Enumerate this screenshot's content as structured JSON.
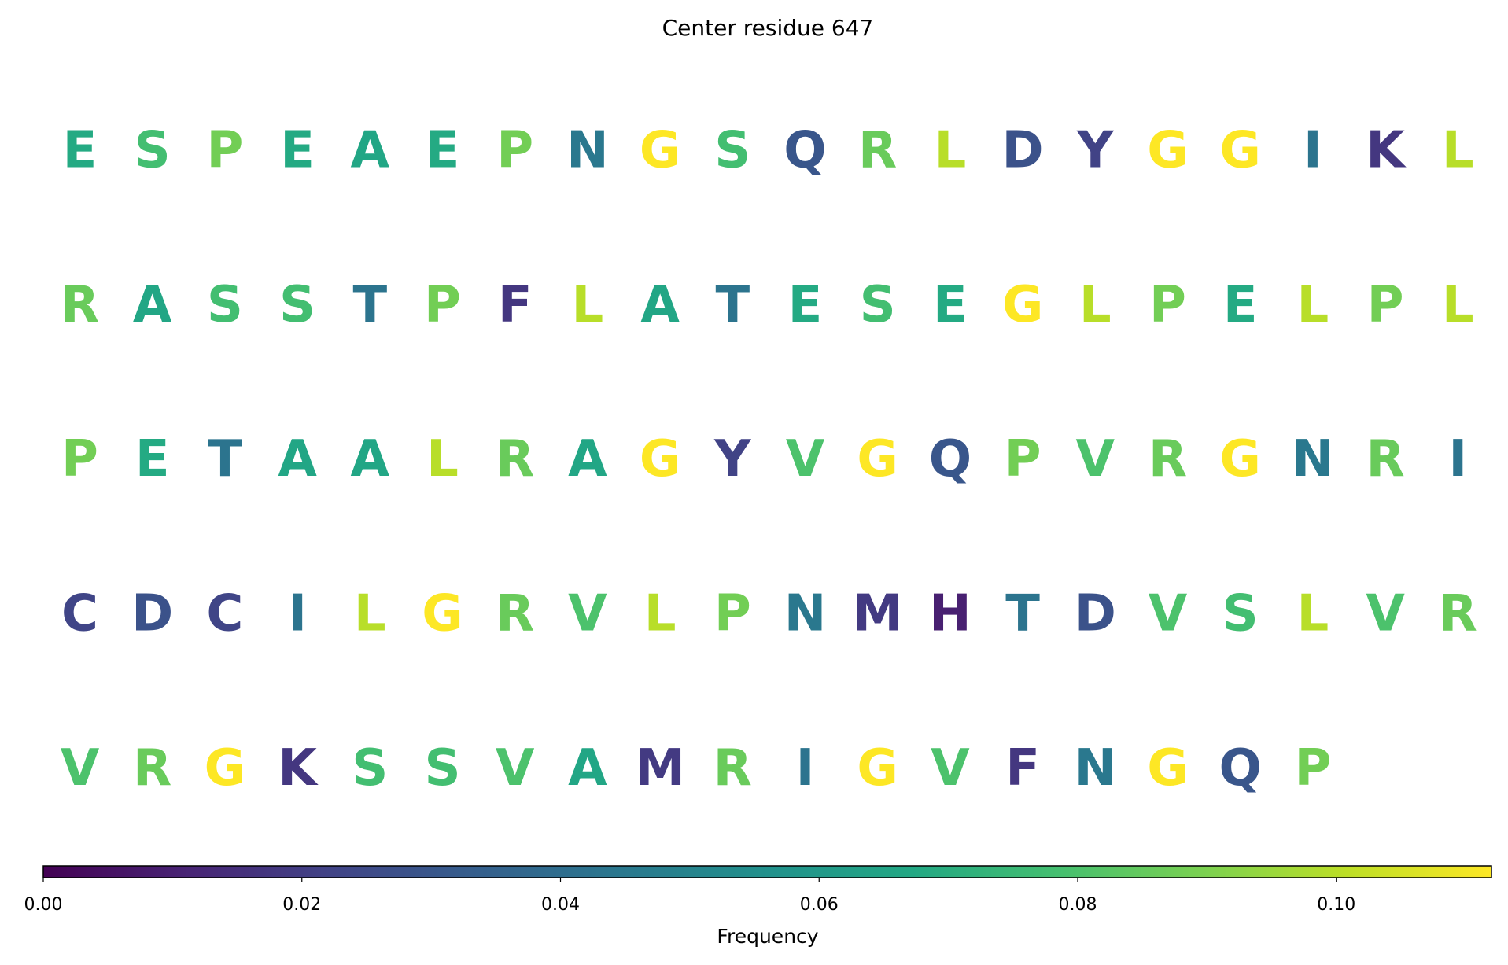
{
  "chart_data": {
    "type": "residue_map",
    "title": "Center residue 647",
    "residues": [
      "E",
      "S",
      "P",
      "E",
      "A",
      "E",
      "P",
      "N",
      "G",
      "S",
      "Q",
      "R",
      "L",
      "D",
      "Y",
      "G",
      "G",
      "I",
      "K",
      "L",
      "R",
      "A",
      "S",
      "S",
      "T",
      "P",
      "F",
      "L",
      "A",
      "T",
      "E",
      "S",
      "E",
      "G",
      "L",
      "P",
      "E",
      "L",
      "P",
      "L",
      "P",
      "E",
      "T",
      "A",
      "A",
      "L",
      "R",
      "A",
      "G",
      "Y",
      "V",
      "G",
      "Q",
      "P",
      "V",
      "R",
      "G",
      "N",
      "R",
      "I",
      "C",
      "D",
      "C",
      "I",
      "L",
      "G",
      "R",
      "V",
      "L",
      "P",
      "N",
      "M",
      "H",
      "T",
      "D",
      "V",
      "S",
      "L",
      "V",
      "R",
      "V",
      "R",
      "G",
      "K",
      "S",
      "S",
      "V",
      "A",
      "M",
      "R",
      "I",
      "G",
      "V",
      "F",
      "N",
      "G",
      "Q",
      "P"
    ],
    "values": [
      0.068,
      0.078,
      0.088,
      0.068,
      0.066,
      0.068,
      0.088,
      0.045,
      0.112,
      0.078,
      0.03,
      0.086,
      0.1,
      0.028,
      0.022,
      0.112,
      0.112,
      0.043,
      0.018,
      0.1,
      0.086,
      0.066,
      0.078,
      0.078,
      0.043,
      0.088,
      0.018,
      0.1,
      0.066,
      0.043,
      0.068,
      0.078,
      0.068,
      0.112,
      0.1,
      0.088,
      0.068,
      0.1,
      0.088,
      0.1,
      0.088,
      0.068,
      0.043,
      0.066,
      0.066,
      0.1,
      0.086,
      0.066,
      0.112,
      0.022,
      0.08,
      0.112,
      0.03,
      0.088,
      0.08,
      0.086,
      0.112,
      0.045,
      0.086,
      0.043,
      0.023,
      0.028,
      0.023,
      0.043,
      0.1,
      0.112,
      0.086,
      0.08,
      0.1,
      0.088,
      0.045,
      0.019,
      0.01,
      0.043,
      0.028,
      0.08,
      0.078,
      0.1,
      0.08,
      0.086,
      0.08,
      0.086,
      0.112,
      0.018,
      0.078,
      0.078,
      0.08,
      0.066,
      0.019,
      0.086,
      0.043,
      0.112,
      0.08,
      0.018,
      0.045,
      0.112,
      0.03,
      0.088
    ],
    "colormap": "viridis",
    "colorbar_label": "Frequency",
    "xlim": [
      0,
      0.112
    ],
    "xticks": [
      {
        "value": 0,
        "label": "0.00"
      },
      {
        "value": 0.02,
        "label": "0.02"
      },
      {
        "value": 0.04,
        "label": "0.04"
      },
      {
        "value": 0.06,
        "label": "0.06"
      },
      {
        "value": 0.08,
        "label": "0.08"
      },
      {
        "value": 0.1,
        "label": "0.10"
      }
    ]
  }
}
